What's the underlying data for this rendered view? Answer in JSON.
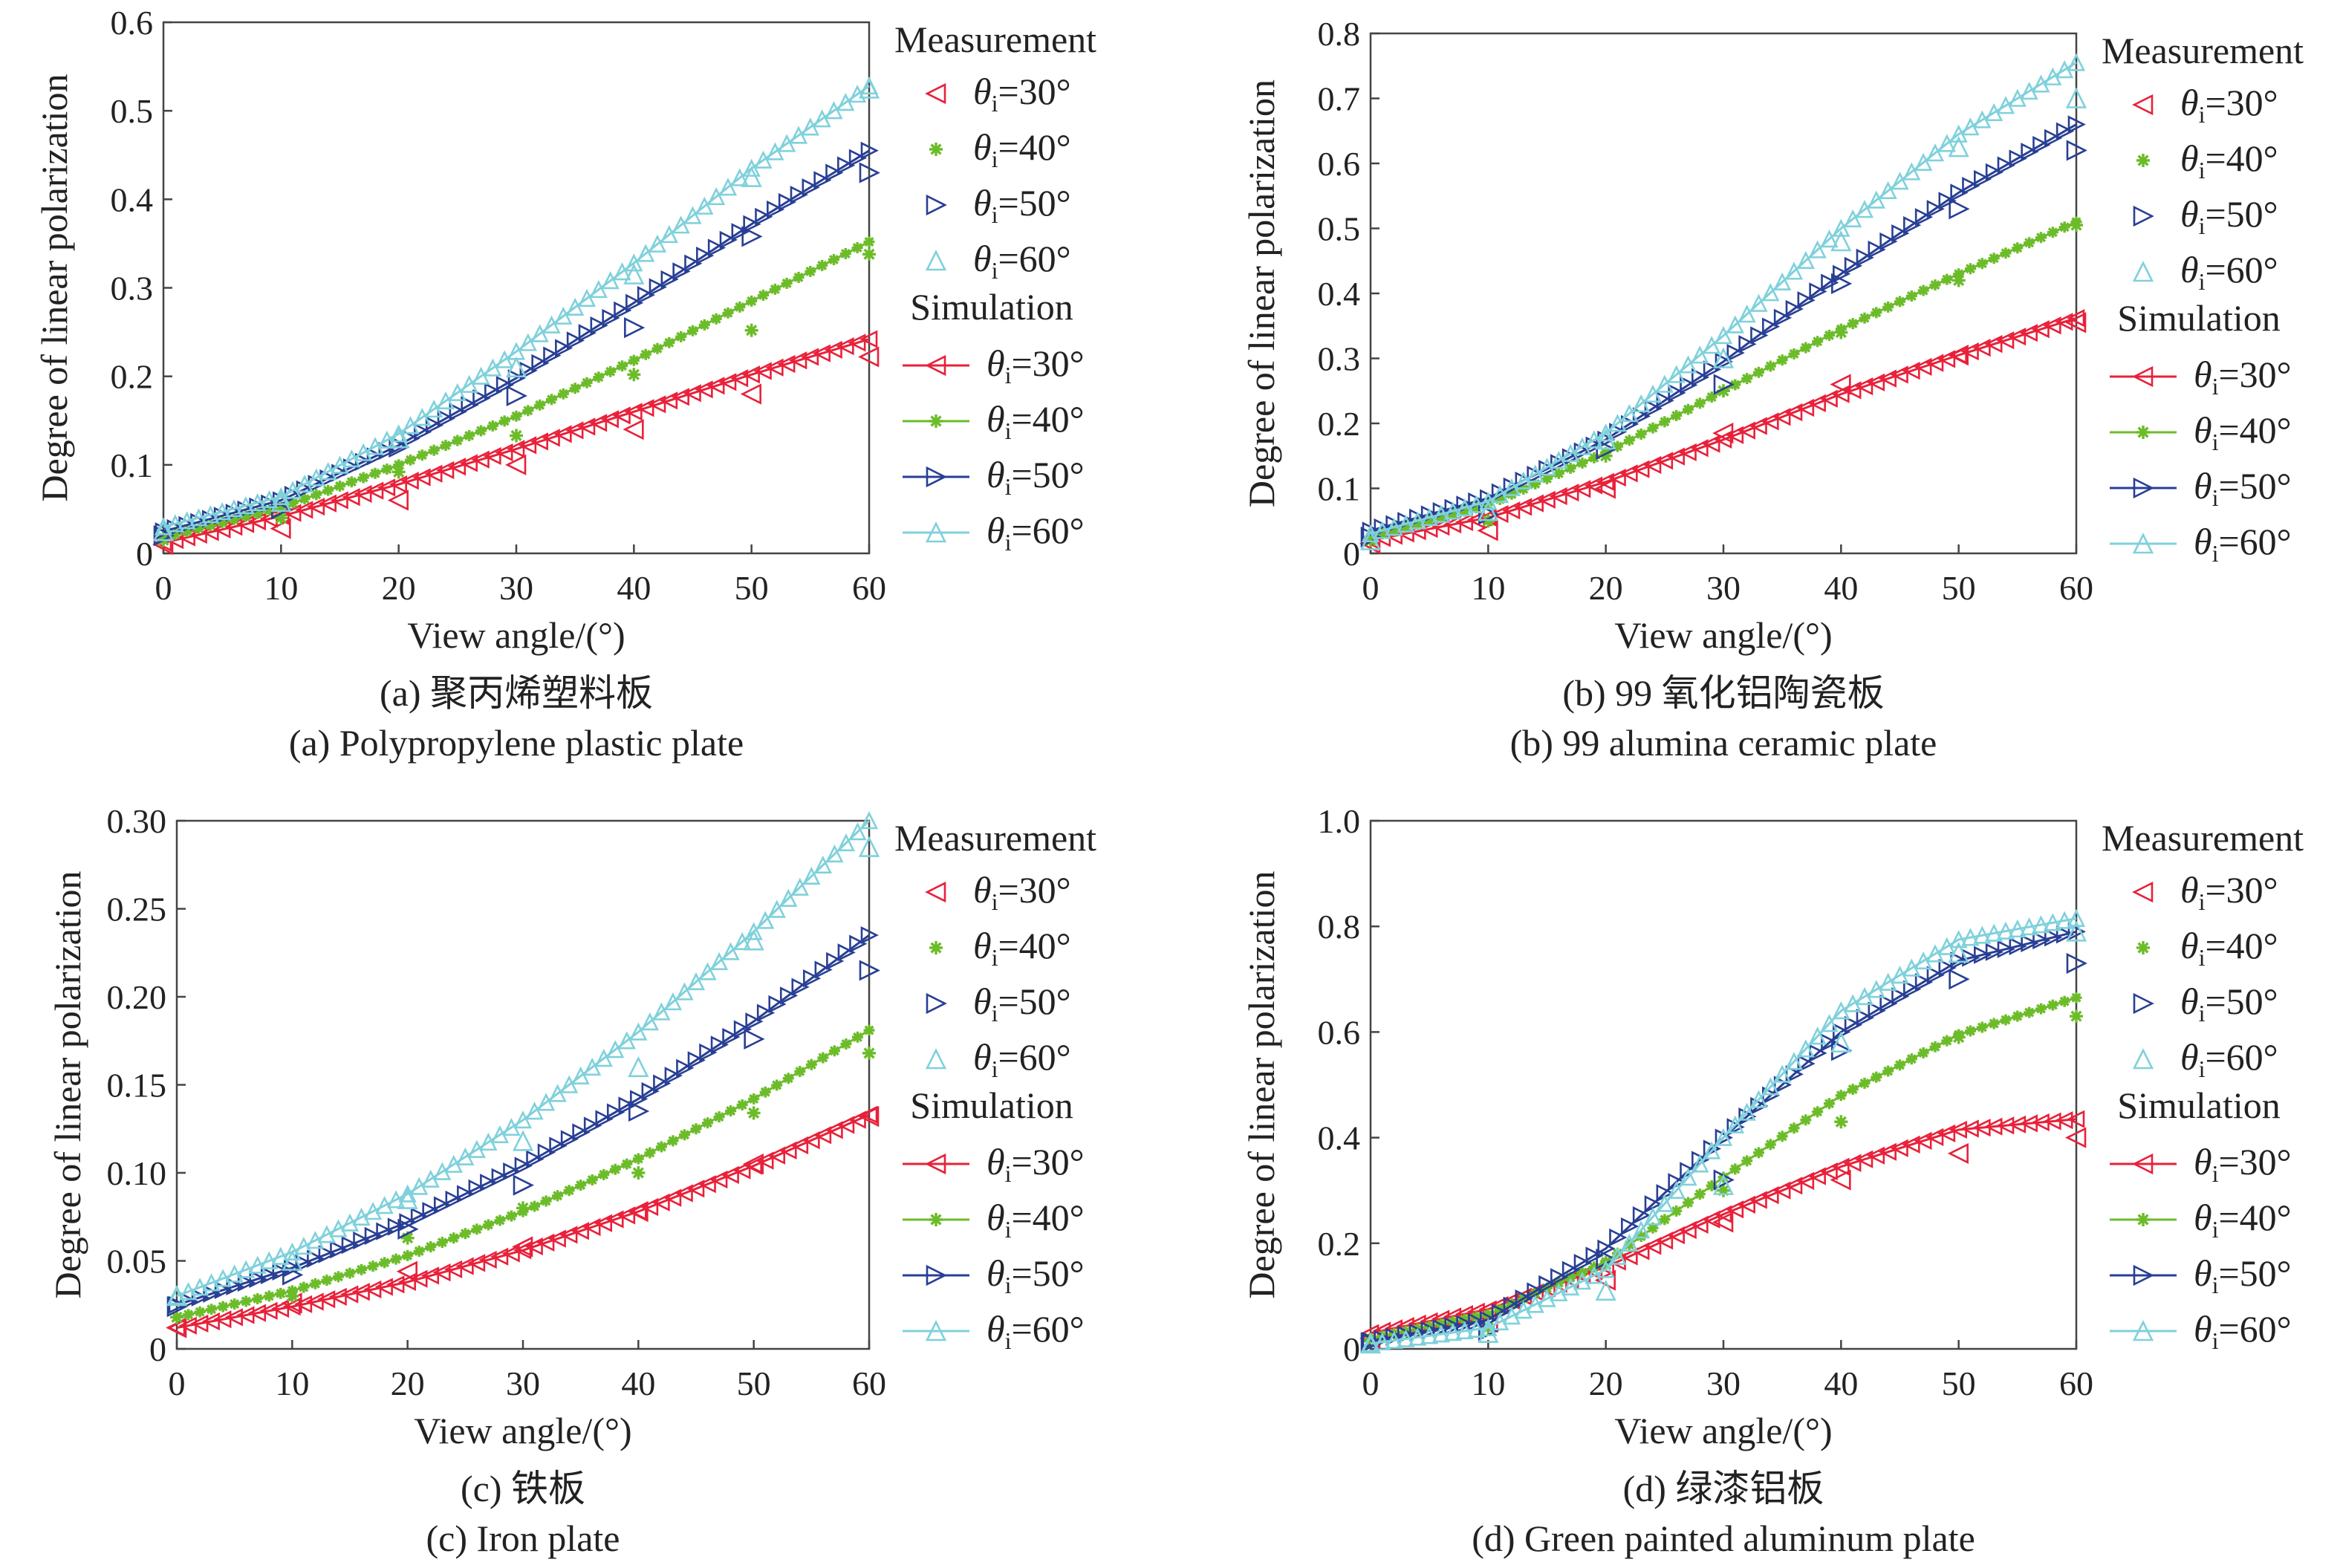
{
  "figure": {
    "legend_headers": {
      "measurement": "Measurement",
      "simulation": "Simulation"
    },
    "theta_symbol": "θ",
    "theta_subscript": "i",
    "colors": {
      "30": "#e8213a",
      "40": "#6cbc2a",
      "50": "#283f94",
      "60": "#7fd1db"
    }
  },
  "chart_data": [
    {
      "type": "scatter",
      "caption_cn": "(a) 聚丙烯塑料板",
      "caption_en": "(a) Polypropylene plastic plate",
      "xlabel": "View angle/(°)",
      "ylabel": "Degree of linear polarization",
      "xlim": [
        0,
        60
      ],
      "ylim": [
        0,
        0.6
      ],
      "xticks": [
        0,
        10,
        20,
        30,
        40,
        50,
        60
      ],
      "yticks": [
        0,
        0.1,
        0.2,
        0.3,
        0.4,
        0.5,
        0.6
      ],
      "ytick_labels": [
        "0",
        "0.1",
        "0.2",
        "0.3",
        "0.4",
        "0.5",
        "0.6"
      ],
      "x": [
        0,
        10,
        20,
        30,
        40,
        50,
        60
      ],
      "series": [
        {
          "name": "θi=30°",
          "theta": "30",
          "measurement": [
            0.01,
            0.028,
            0.06,
            0.1,
            0.14,
            0.18,
            0.222
          ],
          "simulation": [
            0.012,
            0.042,
            0.078,
            0.118,
            0.16,
            0.202,
            0.242
          ]
        },
        {
          "name": "θi=40°",
          "theta": "40",
          "measurement": [
            0.015,
            0.04,
            0.092,
            0.133,
            0.202,
            0.252,
            0.338
          ],
          "simulation": [
            0.018,
            0.052,
            0.1,
            0.155,
            0.218,
            0.285,
            0.352
          ]
        },
        {
          "name": "θi=50°",
          "theta": "50",
          "measurement": [
            0.02,
            0.05,
            0.12,
            0.178,
            0.255,
            0.358,
            0.43
          ],
          "simulation": [
            0.025,
            0.06,
            0.122,
            0.198,
            0.283,
            0.372,
            0.455
          ]
        },
        {
          "name": "θi=60°",
          "theta": "60",
          "measurement": [
            0.025,
            0.058,
            0.13,
            0.21,
            0.315,
            0.425,
            0.525
          ],
          "simulation": [
            0.03,
            0.064,
            0.135,
            0.228,
            0.328,
            0.435,
            0.528
          ]
        }
      ]
    },
    {
      "type": "scatter",
      "caption_cn": "(b) 99 氧化铝陶瓷板",
      "caption_en": "(b) 99 alumina ceramic plate",
      "xlabel": "View angle/(°)",
      "ylabel": "Degree of linear polarization",
      "xlim": [
        0,
        60
      ],
      "ylim": [
        0,
        0.8
      ],
      "xticks": [
        0,
        10,
        20,
        30,
        40,
        50,
        60
      ],
      "yticks": [
        0,
        0.1,
        0.2,
        0.3,
        0.4,
        0.5,
        0.6,
        0.7,
        0.8
      ],
      "ytick_labels": [
        "0",
        "0.1",
        "0.2",
        "0.3",
        "0.4",
        "0.5",
        "0.6",
        "0.7",
        "0.8"
      ],
      "x": [
        0,
        10,
        20,
        30,
        40,
        50,
        60
      ],
      "series": [
        {
          "name": "θi=30°",
          "theta": "30",
          "measurement": [
            0.015,
            0.035,
            0.1,
            0.185,
            0.26,
            0.305,
            0.355
          ],
          "simulation": [
            0.02,
            0.055,
            0.11,
            0.175,
            0.245,
            0.305,
            0.362
          ]
        },
        {
          "name": "θi=40°",
          "theta": "40",
          "measurement": [
            0.02,
            0.05,
            0.15,
            0.25,
            0.34,
            0.42,
            0.505
          ],
          "simulation": [
            0.025,
            0.075,
            0.155,
            0.25,
            0.345,
            0.43,
            0.51
          ]
        },
        {
          "name": "θi=50°",
          "theta": "50",
          "measurement": [
            0.025,
            0.06,
            0.16,
            0.26,
            0.415,
            0.53,
            0.62
          ],
          "simulation": [
            0.035,
            0.085,
            0.175,
            0.295,
            0.43,
            0.555,
            0.66
          ]
        },
        {
          "name": "θi=60°",
          "theta": "60",
          "measurement": [
            0.02,
            0.065,
            0.175,
            0.3,
            0.48,
            0.625,
            0.7
          ],
          "simulation": [
            0.03,
            0.08,
            0.185,
            0.335,
            0.5,
            0.645,
            0.755
          ]
        }
      ]
    },
    {
      "type": "scatter",
      "caption_cn": "(c) 铁板",
      "caption_en": "(c) Iron plate",
      "xlabel": "View angle/(°)",
      "ylabel": "Degree of linear polarization",
      "xlim": [
        0,
        60
      ],
      "ylim": [
        0,
        0.3
      ],
      "xticks": [
        0,
        10,
        20,
        30,
        40,
        50,
        60
      ],
      "yticks": [
        0,
        0.05,
        0.1,
        0.15,
        0.2,
        0.25,
        0.3
      ],
      "ytick_labels": [
        "0",
        "0.05",
        "0.10",
        "0.15",
        "0.20",
        "0.25",
        "0.30"
      ],
      "x": [
        0,
        10,
        20,
        30,
        40,
        50,
        60
      ],
      "series": [
        {
          "name": "θi=30°",
          "theta": "30",
          "measurement": [
            0.012,
            0.026,
            0.044,
            0.058,
            0.078,
            0.105,
            0.132
          ],
          "simulation": [
            0.012,
            0.024,
            0.038,
            0.056,
            0.078,
            0.104,
            0.133
          ]
        },
        {
          "name": "θi=40°",
          "theta": "40",
          "measurement": [
            0.018,
            0.03,
            0.063,
            0.08,
            0.1,
            0.134,
            0.168
          ],
          "simulation": [
            0.018,
            0.033,
            0.053,
            0.078,
            0.108,
            0.142,
            0.181
          ]
        },
        {
          "name": "θi=50°",
          "theta": "50",
          "measurement": [
            0.024,
            0.042,
            0.068,
            0.093,
            0.135,
            0.176,
            0.215
          ],
          "simulation": [
            0.025,
            0.046,
            0.072,
            0.104,
            0.142,
            0.186,
            0.235
          ]
        },
        {
          "name": "θi=60°",
          "theta": "60",
          "measurement": [
            0.03,
            0.05,
            0.085,
            0.118,
            0.16,
            0.232,
            0.285
          ],
          "simulation": [
            0.03,
            0.055,
            0.088,
            0.13,
            0.18,
            0.237,
            0.3
          ]
        }
      ]
    },
    {
      "type": "scatter",
      "caption_cn": "(d) 绿漆铝板",
      "caption_en": "(d) Green painted aluminum plate",
      "xlabel": "View angle/(°)",
      "ylabel": "Degree of linear polarization",
      "xlim": [
        0,
        60
      ],
      "ylim": [
        0,
        1.0
      ],
      "xticks": [
        0,
        10,
        20,
        30,
        40,
        50,
        60
      ],
      "yticks": [
        0,
        0.2,
        0.4,
        0.6,
        0.8,
        1.0
      ],
      "ytick_labels": [
        "0",
        "0.2",
        "0.4",
        "0.6",
        "0.8",
        "1.0"
      ],
      "x": [
        0,
        10,
        20,
        30,
        40,
        50,
        60
      ],
      "series": [
        {
          "name": "θi=30°",
          "theta": "30",
          "measurement": [
            0.02,
            0.05,
            0.13,
            0.24,
            0.32,
            0.37,
            0.4
          ],
          "simulation": [
            0.03,
            0.075,
            0.155,
            0.255,
            0.345,
            0.415,
            0.435
          ]
        },
        {
          "name": "θi=40°",
          "theta": "40",
          "measurement": [
            0.015,
            0.04,
            0.16,
            0.3,
            0.43,
            0.59,
            0.63
          ],
          "simulation": [
            0.02,
            0.065,
            0.165,
            0.325,
            0.48,
            0.595,
            0.665
          ]
        },
        {
          "name": "θi=50°",
          "theta": "50",
          "measurement": [
            0.012,
            0.035,
            0.17,
            0.32,
            0.565,
            0.7,
            0.73
          ],
          "simulation": [
            0.015,
            0.055,
            0.19,
            0.4,
            0.6,
            0.735,
            0.79
          ]
        },
        {
          "name": "θi=60°",
          "theta": "60",
          "measurement": [
            0.01,
            0.03,
            0.11,
            0.31,
            0.58,
            0.75,
            0.79
          ],
          "simulation": [
            0.01,
            0.04,
            0.15,
            0.4,
            0.64,
            0.775,
            0.815
          ]
        }
      ]
    }
  ]
}
